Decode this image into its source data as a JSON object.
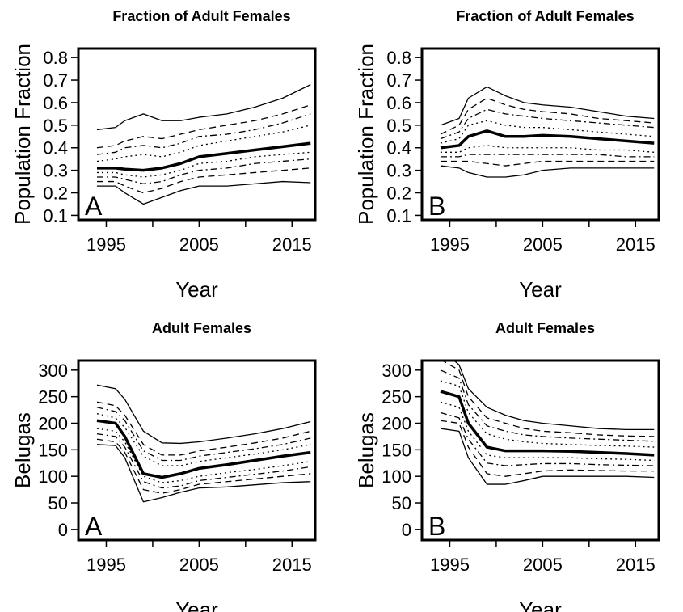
{
  "chart_data": [
    {
      "type": "line",
      "title": "Fraction of Adult Females",
      "xlabel": "Year",
      "ylabel": "Population Fraction",
      "annotation": "A",
      "x": [
        1994,
        1996,
        1997,
        1999,
        2001,
        2003,
        2005,
        2008,
        2011,
        2014,
        2017
      ],
      "xlim": [
        1992,
        2017.5
      ],
      "xticks": [
        1995,
        2005,
        2015
      ],
      "xminor_ticks": [
        2000,
        2010
      ],
      "ylim": [
        0.08,
        0.84
      ],
      "yticks": [
        0.1,
        0.2,
        0.3,
        0.4,
        0.5,
        0.6,
        0.7,
        0.8
      ],
      "series": [
        {
          "color": "#000000",
          "linestyle": "solid",
          "linewidth": 1.3,
          "values": [
            0.48,
            0.49,
            0.52,
            0.55,
            0.52,
            0.52,
            0.535,
            0.55,
            0.58,
            0.62,
            0.68
          ]
        },
        {
          "color": "#000000",
          "linestyle": "dashed",
          "linewidth": 1.3,
          "values": [
            0.4,
            0.41,
            0.43,
            0.45,
            0.44,
            0.46,
            0.48,
            0.5,
            0.52,
            0.55,
            0.59
          ]
        },
        {
          "color": "#000000",
          "linestyle": "dotdash",
          "linewidth": 1.3,
          "values": [
            0.37,
            0.38,
            0.4,
            0.41,
            0.4,
            0.42,
            0.45,
            0.46,
            0.48,
            0.51,
            0.55
          ]
        },
        {
          "color": "#000000",
          "linestyle": "dotted",
          "linewidth": 1.3,
          "values": [
            0.34,
            0.35,
            0.36,
            0.37,
            0.36,
            0.38,
            0.41,
            0.43,
            0.45,
            0.47,
            0.5
          ]
        },
        {
          "color": "#000000",
          "linestyle": "solid",
          "linewidth": 3.5,
          "values": [
            0.31,
            0.31,
            0.305,
            0.3,
            0.31,
            0.33,
            0.36,
            0.375,
            0.39,
            0.405,
            0.42
          ]
        },
        {
          "color": "#000000",
          "linestyle": "dotted",
          "linewidth": 1.3,
          "values": [
            0.29,
            0.29,
            0.28,
            0.27,
            0.28,
            0.3,
            0.33,
            0.34,
            0.36,
            0.37,
            0.38
          ]
        },
        {
          "color": "#000000",
          "linestyle": "dotdash",
          "linewidth": 1.3,
          "values": [
            0.27,
            0.27,
            0.26,
            0.24,
            0.25,
            0.28,
            0.3,
            0.31,
            0.33,
            0.34,
            0.35
          ]
        },
        {
          "color": "#000000",
          "linestyle": "dashed",
          "linewidth": 1.3,
          "values": [
            0.25,
            0.25,
            0.23,
            0.2,
            0.22,
            0.25,
            0.27,
            0.28,
            0.29,
            0.3,
            0.31
          ]
        },
        {
          "color": "#000000",
          "linestyle": "solid",
          "linewidth": 1.3,
          "values": [
            0.23,
            0.23,
            0.2,
            0.15,
            0.18,
            0.21,
            0.23,
            0.23,
            0.24,
            0.25,
            0.245
          ]
        }
      ]
    },
    {
      "type": "line",
      "title": "Fraction of Adult Females",
      "xlabel": "Year",
      "ylabel": "Population Fraction",
      "annotation": "B",
      "x": [
        1994,
        1996,
        1997,
        1999,
        2001,
        2003,
        2005,
        2008,
        2011,
        2014,
        2017
      ],
      "xlim": [
        1992,
        2017.5
      ],
      "xticks": [
        1995,
        2005,
        2015
      ],
      "xminor_ticks": [
        2000,
        2010
      ],
      "ylim": [
        0.08,
        0.84
      ],
      "yticks": [
        0.1,
        0.2,
        0.3,
        0.4,
        0.5,
        0.6,
        0.7,
        0.8
      ],
      "series": [
        {
          "color": "#000000",
          "linestyle": "solid",
          "linewidth": 1.3,
          "values": [
            0.5,
            0.53,
            0.62,
            0.67,
            0.63,
            0.6,
            0.59,
            0.58,
            0.56,
            0.54,
            0.53
          ]
        },
        {
          "color": "#000000",
          "linestyle": "dashed",
          "linewidth": 1.3,
          "values": [
            0.46,
            0.5,
            0.57,
            0.62,
            0.59,
            0.57,
            0.56,
            0.55,
            0.53,
            0.52,
            0.51
          ]
        },
        {
          "color": "#000000",
          "linestyle": "dotdash",
          "linewidth": 1.3,
          "values": [
            0.44,
            0.47,
            0.53,
            0.57,
            0.55,
            0.54,
            0.53,
            0.52,
            0.51,
            0.5,
            0.49
          ]
        },
        {
          "color": "#000000",
          "linestyle": "dotted",
          "linewidth": 1.3,
          "values": [
            0.42,
            0.44,
            0.5,
            0.52,
            0.5,
            0.49,
            0.49,
            0.48,
            0.47,
            0.46,
            0.45
          ]
        },
        {
          "color": "#000000",
          "linestyle": "solid",
          "linewidth": 3.5,
          "values": [
            0.4,
            0.41,
            0.45,
            0.475,
            0.45,
            0.45,
            0.455,
            0.45,
            0.44,
            0.43,
            0.42
          ]
        },
        {
          "color": "#000000",
          "linestyle": "dotted",
          "linewidth": 1.3,
          "values": [
            0.38,
            0.38,
            0.4,
            0.41,
            0.4,
            0.4,
            0.4,
            0.4,
            0.39,
            0.39,
            0.38
          ]
        },
        {
          "color": "#000000",
          "linestyle": "dotdash",
          "linewidth": 1.3,
          "values": [
            0.36,
            0.36,
            0.37,
            0.37,
            0.37,
            0.37,
            0.37,
            0.37,
            0.37,
            0.36,
            0.36
          ]
        },
        {
          "color": "#000000",
          "linestyle": "dashed",
          "linewidth": 1.3,
          "values": [
            0.34,
            0.34,
            0.34,
            0.33,
            0.32,
            0.33,
            0.34,
            0.34,
            0.34,
            0.34,
            0.34
          ]
        },
        {
          "color": "#000000",
          "linestyle": "solid",
          "linewidth": 1.3,
          "values": [
            0.32,
            0.31,
            0.29,
            0.27,
            0.27,
            0.28,
            0.3,
            0.31,
            0.31,
            0.31,
            0.31
          ]
        }
      ]
    },
    {
      "type": "line",
      "title": "Adult Females",
      "xlabel": "Year",
      "ylabel": "Belugas",
      "annotation": "A",
      "x": [
        1994,
        1996,
        1997,
        1999,
        2001,
        2003,
        2005,
        2008,
        2011,
        2014,
        2017
      ],
      "xlim": [
        1992,
        2017.5
      ],
      "xticks": [
        1995,
        2005,
        2015
      ],
      "xminor_ticks": [
        2000,
        2010
      ],
      "ylim": [
        -20,
        318
      ],
      "yticks": [
        0,
        50,
        100,
        150,
        200,
        250,
        300
      ],
      "series": [
        {
          "color": "#000000",
          "linestyle": "solid",
          "linewidth": 1.3,
          "values": [
            272,
            265,
            245,
            185,
            163,
            162,
            165,
            172,
            180,
            190,
            203
          ]
        },
        {
          "color": "#000000",
          "linestyle": "dashed",
          "linewidth": 1.3,
          "values": [
            240,
            233,
            215,
            160,
            140,
            140,
            148,
            155,
            163,
            172,
            185
          ]
        },
        {
          "color": "#000000",
          "linestyle": "dotdash",
          "linewidth": 1.3,
          "values": [
            230,
            222,
            205,
            148,
            130,
            130,
            138,
            145,
            152,
            160,
            172
          ]
        },
        {
          "color": "#000000",
          "linestyle": "dotted",
          "linewidth": 1.3,
          "values": [
            218,
            210,
            192,
            138,
            120,
            120,
            128,
            135,
            142,
            150,
            160
          ]
        },
        {
          "color": "#000000",
          "linestyle": "solid",
          "linewidth": 3.5,
          "values": [
            205,
            200,
            175,
            105,
            98,
            105,
            115,
            122,
            130,
            138,
            145
          ]
        },
        {
          "color": "#000000",
          "linestyle": "dotted",
          "linewidth": 1.3,
          "values": [
            190,
            185,
            165,
            100,
            88,
            92,
            100,
            107,
            113,
            120,
            128
          ]
        },
        {
          "color": "#000000",
          "linestyle": "dotdash",
          "linewidth": 1.3,
          "values": [
            180,
            175,
            155,
            90,
            78,
            82,
            92,
            98,
            104,
            110,
            118
          ]
        },
        {
          "color": "#000000",
          "linestyle": "dashed",
          "linewidth": 1.3,
          "values": [
            170,
            165,
            145,
            75,
            68,
            75,
            85,
            90,
            95,
            100,
            105
          ]
        },
        {
          "color": "#000000",
          "linestyle": "solid",
          "linewidth": 1.3,
          "values": [
            160,
            158,
            135,
            52,
            60,
            70,
            78,
            80,
            84,
            88,
            90
          ]
        }
      ]
    },
    {
      "type": "line",
      "title": "Adult Females",
      "xlabel": "Year",
      "ylabel": "Belugas",
      "annotation": "B",
      "x": [
        1994,
        1996,
        1997,
        1999,
        2001,
        2003,
        2005,
        2008,
        2011,
        2014,
        2017
      ],
      "xlim": [
        1992,
        2017.5
      ],
      "xticks": [
        1995,
        2005,
        2015
      ],
      "xminor_ticks": [
        2000,
        2010
      ],
      "ylim": [
        -20,
        318
      ],
      "yticks": [
        0,
        50,
        100,
        150,
        200,
        250,
        300
      ],
      "series": [
        {
          "color": "#000000",
          "linestyle": "solid",
          "linewidth": 1.3,
          "values": [
            340,
            310,
            265,
            230,
            215,
            205,
            200,
            195,
            190,
            188,
            188
          ]
        },
        {
          "color": "#000000",
          "linestyle": "dashed",
          "linewidth": 1.3,
          "values": [
            320,
            300,
            250,
            210,
            200,
            190,
            185,
            182,
            178,
            176,
            175
          ]
        },
        {
          "color": "#000000",
          "linestyle": "dotdash",
          "linewidth": 1.3,
          "values": [
            300,
            285,
            235,
            195,
            185,
            178,
            175,
            172,
            170,
            168,
            166
          ]
        },
        {
          "color": "#000000",
          "linestyle": "dotted",
          "linewidth": 1.3,
          "values": [
            280,
            270,
            220,
            180,
            170,
            165,
            162,
            160,
            158,
            157,
            155
          ]
        },
        {
          "color": "#000000",
          "linestyle": "solid",
          "linewidth": 3.5,
          "values": [
            260,
            250,
            200,
            155,
            148,
            148,
            148,
            147,
            145,
            143,
            140
          ]
        },
        {
          "color": "#000000",
          "linestyle": "dotted",
          "linewidth": 1.3,
          "values": [
            240,
            230,
            185,
            140,
            135,
            135,
            135,
            135,
            133,
            132,
            130
          ]
        },
        {
          "color": "#000000",
          "linestyle": "dotdash",
          "linewidth": 1.3,
          "values": [
            220,
            210,
            170,
            125,
            120,
            122,
            124,
            124,
            122,
            121,
            120
          ]
        },
        {
          "color": "#000000",
          "linestyle": "dashed",
          "linewidth": 1.3,
          "values": [
            205,
            200,
            155,
            105,
            100,
            105,
            110,
            112,
            111,
            110,
            110
          ]
        },
        {
          "color": "#000000",
          "linestyle": "solid",
          "linewidth": 1.3,
          "values": [
            190,
            185,
            135,
            85,
            85,
            92,
            100,
            100,
            100,
            100,
            98
          ]
        }
      ]
    }
  ]
}
